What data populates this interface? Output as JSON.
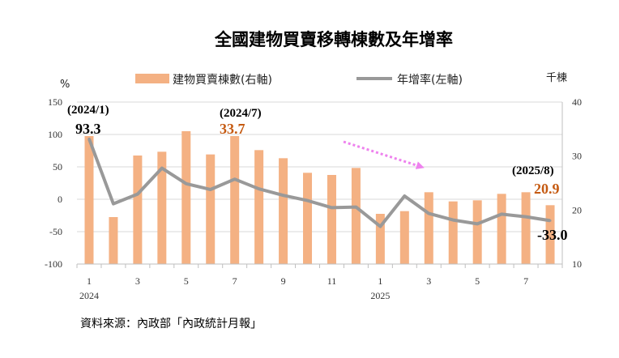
{
  "chart_data": {
    "type": "bar+line",
    "title": "全國建物買賣移轉棟數及年增率",
    "left_axis_unit": "%",
    "right_axis_unit": "千棟",
    "left_ylim": [
      -100,
      150
    ],
    "left_ticks": [
      "150",
      "100",
      "50",
      "0",
      "-50",
      "-100"
    ],
    "right_ylim": [
      10,
      40
    ],
    "right_ticks": [
      "40",
      "30",
      "20",
      "10"
    ],
    "x_tick_labels": [
      {
        "index": 0,
        "label": "1"
      },
      {
        "index": 2,
        "label": "3"
      },
      {
        "index": 4,
        "label": "5"
      },
      {
        "index": 6,
        "label": "7"
      },
      {
        "index": 8,
        "label": "9"
      },
      {
        "index": 10,
        "label": "11"
      },
      {
        "index": 12,
        "label": "1"
      },
      {
        "index": 14,
        "label": "3"
      },
      {
        "index": 16,
        "label": "5"
      },
      {
        "index": 18,
        "label": "7"
      }
    ],
    "year_labels": [
      {
        "index": 0,
        "label": "2024"
      },
      {
        "index": 12,
        "label": "2025"
      }
    ],
    "series": [
      {
        "name": "建物買賣棟數(右軸)",
        "type": "bar",
        "axis": "right",
        "color": "#f4b183",
        "values": [
          33.7,
          18.7,
          30.1,
          30.8,
          34.6,
          30.3,
          33.7,
          31.1,
          29.6,
          26.9,
          26.5,
          27.8,
          19.3,
          19.8,
          23.3,
          21.6,
          21.8,
          23.0,
          23.3,
          20.9
        ]
      },
      {
        "name": "年增率(左軸)",
        "type": "line",
        "axis": "left",
        "color": "#999999",
        "values": [
          93.3,
          -7,
          8,
          48,
          24,
          15,
          31,
          16,
          6,
          -2,
          -13,
          -12,
          -42,
          5,
          -22,
          -32,
          -38,
          -23,
          -27,
          -33.0
        ]
      }
    ],
    "annotations": [
      {
        "date": "(2024/1)",
        "value": "93.3",
        "index": 0,
        "color": "#000000"
      },
      {
        "date": "(2024/7)",
        "value": "33.7",
        "index": 6,
        "color": "#c55a11"
      },
      {
        "date": "(2025/8)",
        "value": "20.9",
        "index": 19,
        "color": "#c55a11"
      },
      {
        "value": "-33.0",
        "index": 19,
        "color": "#000000"
      }
    ],
    "trend_arrow_color": "#ee82ee",
    "source": "資料來源：內政部「內政統計月報」"
  }
}
